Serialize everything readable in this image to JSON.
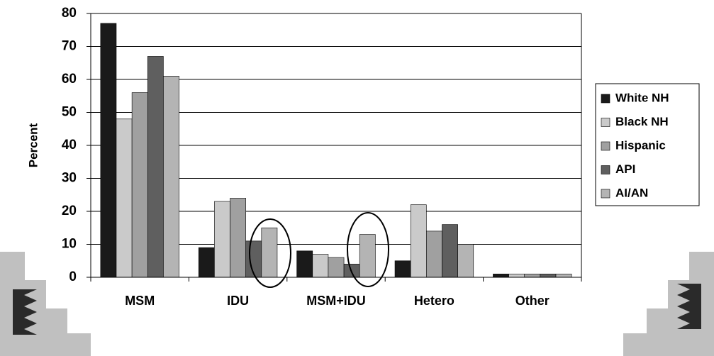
{
  "chart_data": {
    "type": "bar",
    "y_label": "Percent",
    "categories": [
      "MSM",
      "IDU",
      "MSM+IDU",
      "Hetero",
      "Other"
    ],
    "series": [
      {
        "name": "White NH",
        "color": "#1a1a1a",
        "values": [
          77,
          9,
          8,
          5,
          1
        ]
      },
      {
        "name": "Black NH",
        "color": "#cacaca",
        "values": [
          48,
          23,
          7,
          22,
          1
        ]
      },
      {
        "name": "Hispanic",
        "color": "#a0a0a0",
        "values": [
          56,
          24,
          6,
          14,
          1
        ]
      },
      {
        "name": "API",
        "color": "#5f5f5f",
        "values": [
          67,
          11,
          4,
          16,
          1
        ]
      },
      {
        "name": "AI/AN",
        "color": "#b4b4b4",
        "values": [
          61,
          15,
          13,
          10,
          1
        ]
      }
    ],
    "ylim": [
      0,
      80
    ],
    "yticks": [
      0,
      10,
      20,
      30,
      40,
      50,
      60,
      70,
      80
    ],
    "grid": true,
    "legend": "right"
  }
}
